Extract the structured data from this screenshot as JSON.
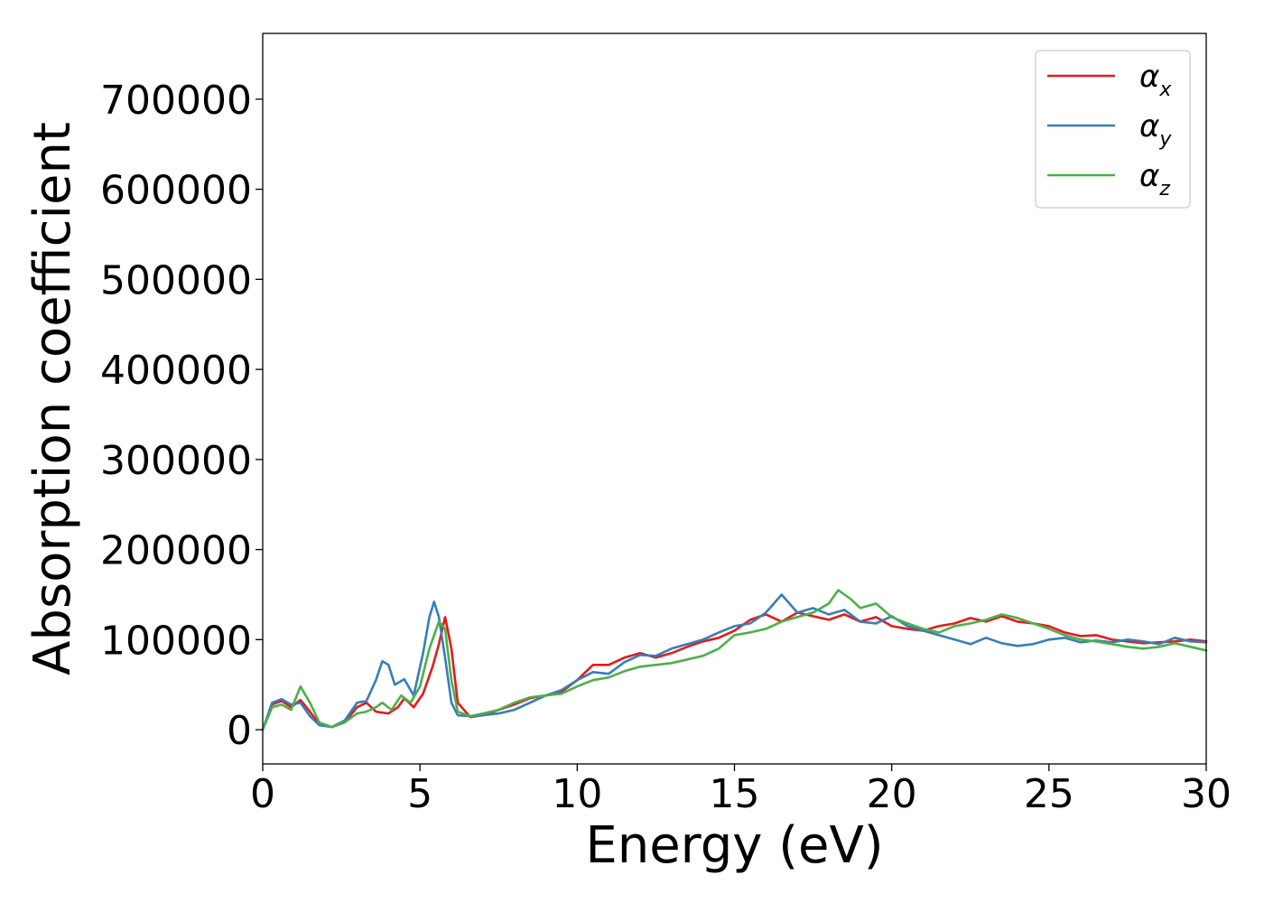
{
  "chart_data": {
    "type": "line",
    "title": "",
    "xlabel": "Energy (eV)",
    "ylabel": "Absorption coefficient",
    "xlim": [
      0,
      30
    ],
    "ylim": [
      -38000,
      773000
    ],
    "xticks": [
      "0",
      "5",
      "10",
      "15",
      "20",
      "25",
      "30"
    ],
    "yticks": [
      "0",
      "100000",
      "200000",
      "300000",
      "400000",
      "500000",
      "600000",
      "700000"
    ],
    "grid": false,
    "legend_position": "top-right",
    "series": [
      {
        "name": "α",
        "sub": "x",
        "color": "#e41a1c",
        "x": [
          0,
          0.3,
          0.6,
          0.9,
          1.2,
          1.5,
          1.8,
          2.2,
          2.6,
          3.0,
          3.3,
          3.6,
          4.0,
          4.3,
          4.5,
          4.8,
          5.1,
          5.4,
          5.6,
          5.8,
          6.0,
          6.2,
          6.6,
          7.0,
          7.5,
          8.0,
          8.5,
          9.0,
          9.5,
          10.0,
          10.5,
          11.0,
          11.5,
          12.0,
          12.5,
          13.0,
          13.5,
          14.0,
          14.5,
          15.0,
          15.5,
          16.0,
          16.5,
          17.0,
          17.5,
          18.0,
          18.5,
          19.0,
          19.5,
          20.0,
          20.5,
          21.0,
          21.5,
          22.0,
          22.5,
          23.0,
          23.5,
          24.0,
          24.5,
          25.0,
          25.5,
          26.0,
          26.5,
          27.0,
          27.5,
          28.0,
          28.5,
          29.0,
          29.5,
          30.0
        ],
        "y": [
          0,
          28000,
          32000,
          25000,
          33000,
          20000,
          6000,
          3000,
          8000,
          25000,
          30000,
          20000,
          18000,
          25000,
          35000,
          25000,
          40000,
          70000,
          95000,
          125000,
          90000,
          30000,
          14000,
          16000,
          22000,
          28000,
          35000,
          38000,
          42000,
          55000,
          72000,
          72000,
          80000,
          85000,
          80000,
          85000,
          92000,
          98000,
          102000,
          110000,
          122000,
          128000,
          120000,
          130000,
          126000,
          122000,
          128000,
          120000,
          125000,
          115000,
          112000,
          110000,
          115000,
          118000,
          124000,
          120000,
          126000,
          120000,
          118000,
          115000,
          108000,
          104000,
          105000,
          100000,
          98000,
          96000,
          97000,
          98000,
          100000,
          98000
        ]
      },
      {
        "name": "α",
        "sub": "y",
        "color": "#377eb8",
        "x": [
          0,
          0.3,
          0.6,
          0.9,
          1.2,
          1.5,
          1.8,
          2.2,
          2.6,
          3.0,
          3.3,
          3.6,
          3.8,
          4.0,
          4.2,
          4.5,
          4.8,
          5.1,
          5.3,
          5.45,
          5.6,
          5.8,
          6.0,
          6.2,
          6.6,
          7.0,
          7.5,
          8.0,
          8.5,
          9.0,
          9.5,
          10.0,
          10.5,
          11.0,
          11.5,
          12.0,
          12.5,
          13.0,
          13.5,
          14.0,
          14.5,
          15.0,
          15.5,
          16.0,
          16.5,
          17.0,
          17.5,
          18.0,
          18.5,
          19.0,
          19.5,
          20.0,
          20.5,
          21.0,
          21.5,
          22.0,
          22.5,
          23.0,
          23.5,
          24.0,
          24.5,
          25.0,
          25.5,
          26.0,
          26.5,
          27.0,
          27.5,
          28.0,
          28.5,
          29.0,
          29.5,
          30.0
        ],
        "y": [
          0,
          30000,
          34000,
          28000,
          30000,
          15000,
          5000,
          3000,
          10000,
          30000,
          32000,
          55000,
          76000,
          72000,
          50000,
          56000,
          38000,
          85000,
          125000,
          142000,
          125000,
          80000,
          30000,
          16000,
          15000,
          16000,
          18000,
          22000,
          30000,
          38000,
          44000,
          55000,
          64000,
          62000,
          75000,
          83000,
          82000,
          90000,
          95000,
          100000,
          108000,
          115000,
          118000,
          130000,
          150000,
          130000,
          135000,
          128000,
          133000,
          120000,
          118000,
          126000,
          115000,
          110000,
          105000,
          100000,
          95000,
          102000,
          96000,
          93000,
          95000,
          100000,
          102000,
          97000,
          99000,
          97000,
          100000,
          98000,
          95000,
          102000,
          98000,
          97000
        ]
      },
      {
        "name": "α",
        "sub": "z",
        "color": "#4daf4a",
        "x": [
          0,
          0.3,
          0.6,
          0.9,
          1.2,
          1.5,
          1.8,
          2.2,
          2.6,
          3.0,
          3.3,
          3.6,
          3.8,
          4.1,
          4.4,
          4.7,
          5.0,
          5.3,
          5.6,
          5.8,
          6.0,
          6.2,
          6.6,
          7.0,
          7.5,
          8.0,
          8.5,
          9.0,
          9.5,
          10.0,
          10.5,
          11.0,
          11.5,
          12.0,
          12.5,
          13.0,
          13.5,
          14.0,
          14.5,
          15.0,
          15.5,
          16.0,
          16.5,
          17.0,
          17.5,
          18.0,
          18.3,
          18.7,
          19.0,
          19.5,
          20.0,
          20.5,
          21.0,
          21.5,
          22.0,
          22.5,
          23.0,
          23.5,
          24.0,
          24.5,
          25.0,
          25.5,
          26.0,
          26.5,
          27.0,
          27.5,
          28.0,
          28.5,
          29.0,
          29.5,
          30.0
        ],
        "y": [
          0,
          25000,
          28000,
          22000,
          48000,
          30000,
          8000,
          3000,
          8000,
          18000,
          20000,
          25000,
          30000,
          22000,
          38000,
          30000,
          48000,
          90000,
          120000,
          112000,
          55000,
          20000,
          15000,
          18000,
          22000,
          30000,
          36000,
          38000,
          40000,
          48000,
          55000,
          58000,
          65000,
          70000,
          72000,
          74000,
          78000,
          82000,
          90000,
          105000,
          108000,
          112000,
          120000,
          125000,
          130000,
          140000,
          155000,
          145000,
          135000,
          140000,
          125000,
          118000,
          112000,
          108000,
          115000,
          118000,
          122000,
          128000,
          124000,
          118000,
          112000,
          105000,
          100000,
          98000,
          95000,
          92000,
          90000,
          92000,
          96000,
          92000,
          88000
        ]
      }
    ]
  }
}
